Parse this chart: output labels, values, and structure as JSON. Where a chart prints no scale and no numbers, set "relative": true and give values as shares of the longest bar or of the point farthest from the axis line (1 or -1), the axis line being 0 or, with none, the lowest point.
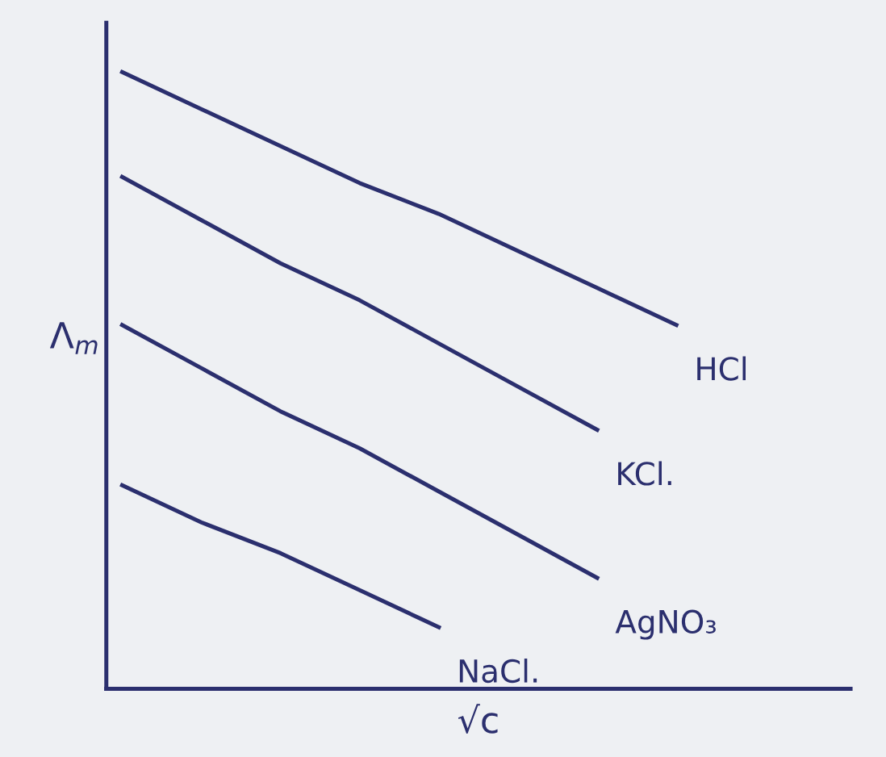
{
  "chart_data": {
    "type": "line",
    "relative": true,
    "xlabel": "√c",
    "ylabel": "Λ$_{m}$",
    "categories": [
      null,
      null,
      null,
      null,
      null,
      null,
      null,
      null
    ],
    "series": [
      {
        "name": "HCl",
        "color": "#2b2f6e",
        "values": [
          1.0,
          0.94,
          0.88,
          0.82,
          0.77,
          0.71,
          0.65,
          0.59
        ]
      },
      {
        "name": "KCl.",
        "color": "#2b2f6e",
        "values": [
          0.83,
          0.76,
          0.69,
          0.63,
          0.56,
          0.49,
          0.42,
          null
        ]
      },
      {
        "name": "AgNO₃",
        "color": "#2b2f6e",
        "values": [
          0.59,
          0.52,
          0.45,
          0.39,
          0.32,
          0.25,
          0.18,
          null
        ]
      },
      {
        "name": "NaCl.",
        "color": "#2b2f6e",
        "values": [
          0.33,
          0.27,
          0.22,
          0.16,
          0.1,
          null,
          null,
          null
        ]
      }
    ],
    "grid": false,
    "legend": false,
    "marker": "none",
    "line_style": "solid"
  }
}
